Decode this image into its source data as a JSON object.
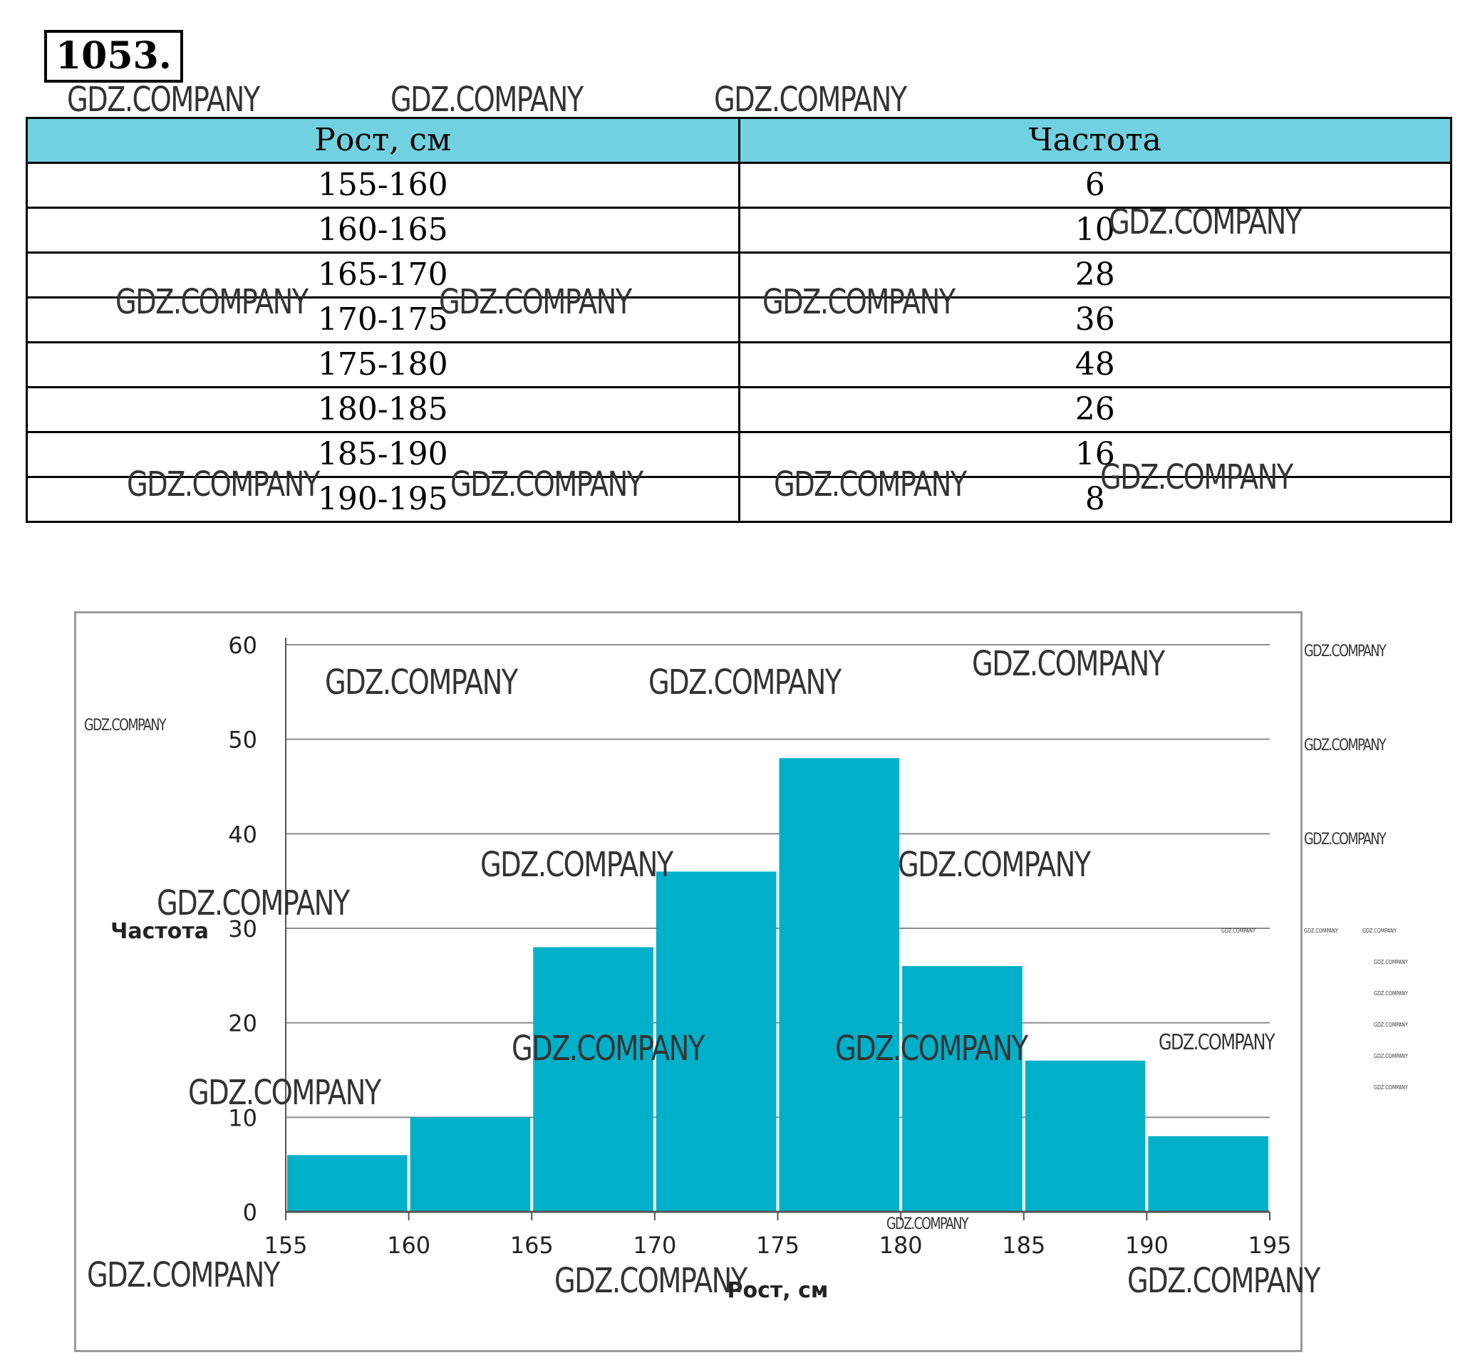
{
  "problem": {
    "number": "1053."
  },
  "table": {
    "headers": [
      "Рост, см",
      "Частота"
    ],
    "rows": [
      [
        "155-160",
        "6"
      ],
      [
        "160-165",
        "10"
      ],
      [
        "165-170",
        "28"
      ],
      [
        "170-175",
        "36"
      ],
      [
        "175-180",
        "48"
      ],
      [
        "180-185",
        "26"
      ],
      [
        "185-190",
        "16"
      ],
      [
        "190-195",
        "8"
      ]
    ]
  },
  "watermark": {
    "text": "GDZ.COMPANY"
  },
  "colors": {
    "bar": "#00afc8",
    "header": "#72d1e0",
    "grid": "#8c8c8c"
  },
  "chart_data": {
    "type": "bar",
    "title": "",
    "xlabel": "Рост, см",
    "ylabel": "Частота",
    "bin_edges": [
      155,
      160,
      165,
      170,
      175,
      180,
      185,
      190,
      195
    ],
    "x_ticks": [
      155,
      160,
      165,
      170,
      175,
      180,
      185,
      190,
      195
    ],
    "values": [
      6,
      10,
      28,
      36,
      48,
      26,
      16,
      8
    ],
    "y_ticks": [
      0,
      10,
      20,
      30,
      40,
      50,
      60
    ],
    "ylim": [
      0,
      60
    ],
    "xlim": [
      155,
      195
    ],
    "grid": true,
    "legend": "none"
  }
}
